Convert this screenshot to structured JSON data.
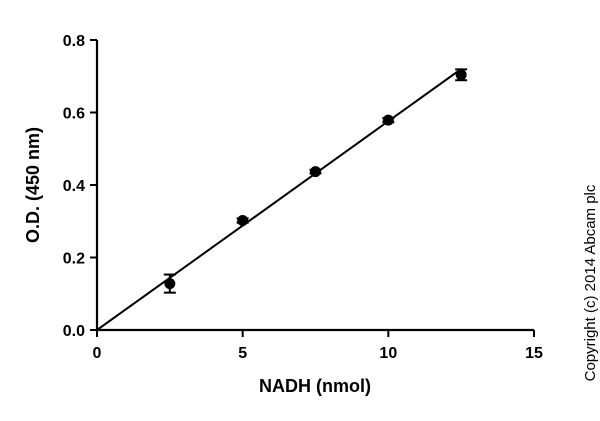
{
  "chart_data": {
    "type": "scatter",
    "title": "",
    "xlabel": "NADH (nmol)",
    "ylabel": "O.D. (450 nm)",
    "xlim": [
      0,
      15
    ],
    "ylim": [
      0,
      0.8
    ],
    "x_ticks": [
      0,
      5,
      10,
      15
    ],
    "y_ticks": [
      0.0,
      0.2,
      0.4,
      0.6,
      0.8
    ],
    "x_tick_labels": [
      "0",
      "5",
      "10",
      "15"
    ],
    "y_tick_labels": [
      "0.0",
      "0.2",
      "0.4",
      "0.6",
      "0.8"
    ],
    "grid": false,
    "legend": "none",
    "marker": "circle",
    "color": "#000000",
    "series": [
      {
        "x": [
          2.5,
          5,
          7.5,
          10,
          12.5
        ],
        "y": [
          0.128,
          0.302,
          0.437,
          0.579,
          0.704
        ],
        "y_err": [
          0.025,
          0.006,
          0.005,
          0.006,
          0.015
        ]
      }
    ],
    "fit": {
      "type": "linear",
      "x": [
        0,
        12.5
      ],
      "y": [
        0.0,
        0.72
      ]
    }
  },
  "copyright": "Copyright (c) 2014 Abcam plc"
}
